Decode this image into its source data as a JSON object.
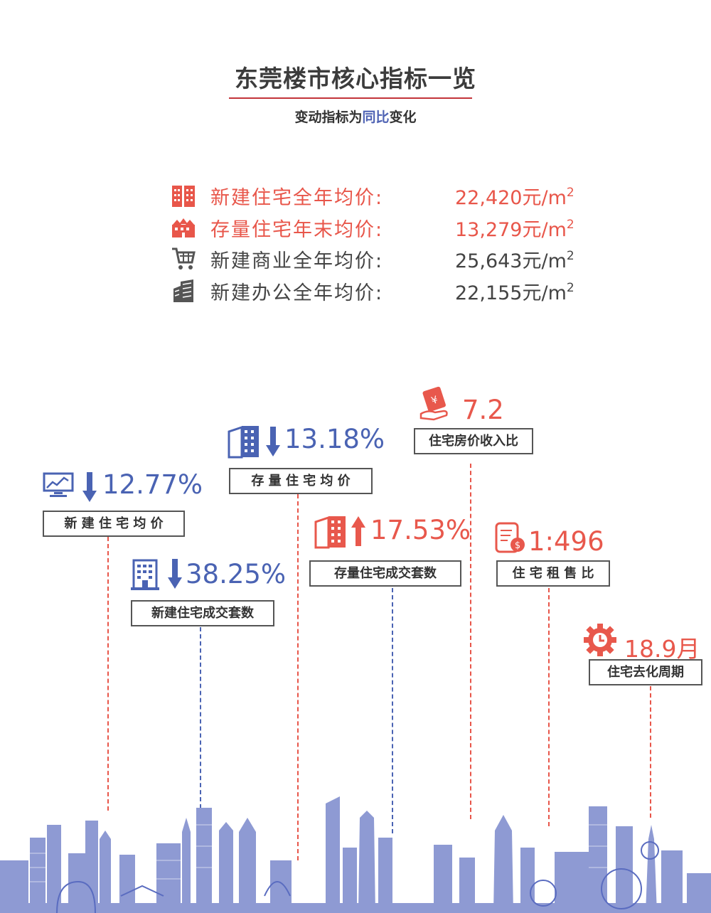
{
  "header": {
    "title": "东莞楼市核心指标一览",
    "subtitle_pre": "变动指标为",
    "subtitle_hl": "同比",
    "subtitle_post": "变化"
  },
  "prices": [
    {
      "label": "新建住宅全年均价:",
      "value": "22,420元/m",
      "sup": "2",
      "color": "#e8564a",
      "icon": "residential-building-icon"
    },
    {
      "label": "存量住宅年末均价:",
      "value": "13,279元/m",
      "sup": "2",
      "color": "#e8564a",
      "icon": "house-row-icon"
    },
    {
      "label": "新建商业全年均价:",
      "value": "25,643元/m",
      "sup": "2",
      "color": "#444444",
      "icon": "shopping-cart-icon"
    },
    {
      "label": "新建办公全年均价:",
      "value": "22,155元/m",
      "sup": "2",
      "color": "#444444",
      "icon": "office-building-icon"
    }
  ],
  "stats": {
    "new_price": {
      "value": "12.77%",
      "label": "新 建 住 宅 均 价",
      "icon": "trend-chart-icon",
      "arrow": "down"
    },
    "stock_price": {
      "value": "13.18%",
      "label": "存 量 住 宅 均 价",
      "icon": "buildings-icon",
      "arrow": "down"
    },
    "new_volume": {
      "value": "38.25%",
      "label": "新建住宅成交套数",
      "icon": "apartment-icon",
      "arrow": "down"
    },
    "stock_volume": {
      "value": "17.53%",
      "label": "存量住宅成交套数",
      "icon": "buildings-icon",
      "arrow": "up"
    },
    "price_income": {
      "value": "7.2",
      "label": "住宅房价收入比",
      "icon": "money-hand-icon"
    },
    "rent_sale": {
      "value": "1:496",
      "label": "住 宅 租 售 比",
      "icon": "contract-icon"
    },
    "destock": {
      "value": "18.9月",
      "label": "住宅去化周期",
      "icon": "clock-gear-icon"
    }
  },
  "colors": {
    "blue": "#4a63b3",
    "red": "#e8564a",
    "dark": "#444444"
  }
}
